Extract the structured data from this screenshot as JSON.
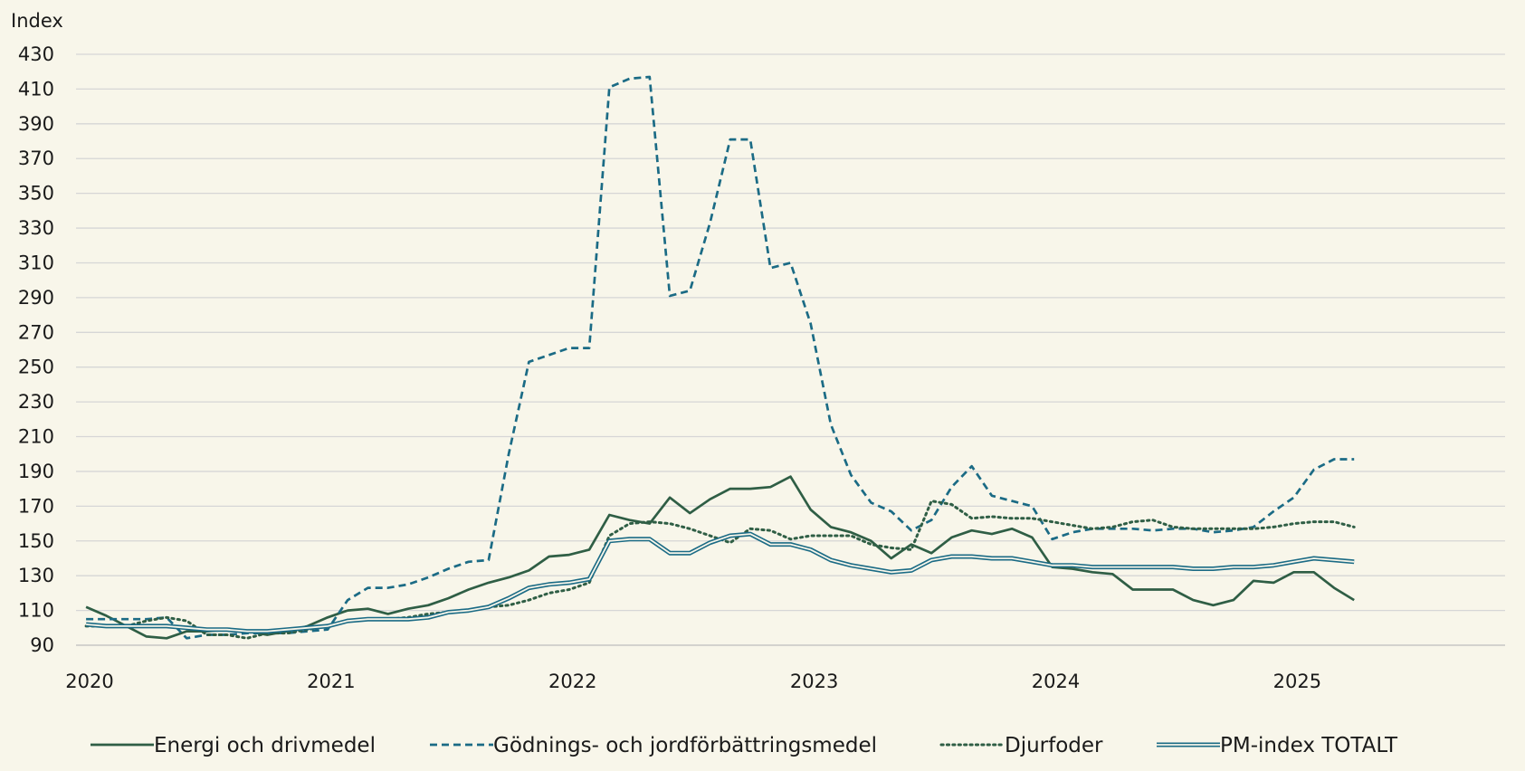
{
  "chart_data": {
    "type": "line",
    "title": "",
    "ylabel": "Index",
    "xlabel": "",
    "ylim": [
      90,
      430
    ],
    "yticks": [
      90,
      110,
      130,
      150,
      170,
      190,
      210,
      230,
      250,
      270,
      290,
      310,
      330,
      350,
      370,
      390,
      410,
      430
    ],
    "xticks": [
      "2020",
      "2021",
      "2022",
      "2023",
      "2024",
      "2025"
    ],
    "x_start": "2020-01",
    "x_end": "2025-04",
    "grid": true,
    "legend_position": "bottom",
    "series": [
      {
        "name": "Energi och drivmedel",
        "style": "solid",
        "color": "#2f5e45",
        "values": [
          112,
          107,
          101,
          95,
          94,
          98,
          98,
          99,
          98,
          96,
          98,
          101,
          106,
          110,
          111,
          108,
          111,
          113,
          117,
          122,
          126,
          129,
          133,
          141,
          142,
          145,
          165,
          162,
          160,
          175,
          166,
          174,
          180,
          180,
          181,
          187,
          168,
          158,
          155,
          150,
          140,
          148,
          143,
          152,
          156,
          154,
          157,
          152,
          135,
          134,
          132,
          131,
          122,
          122,
          122,
          116,
          113,
          116,
          127,
          126,
          132,
          132,
          123,
          116
        ]
      },
      {
        "name": "Gödnings- och jordförbättringsmedel",
        "style": "dashed",
        "color": "#1b6b85",
        "values": [
          105,
          105,
          105,
          105,
          106,
          94,
          96,
          96,
          97,
          97,
          97,
          98,
          99,
          116,
          123,
          123,
          125,
          129,
          134,
          138,
          139,
          200,
          253,
          257,
          261,
          261,
          411,
          416,
          417,
          291,
          294,
          333,
          381,
          381,
          307,
          310,
          275,
          217,
          188,
          172,
          167,
          156,
          162,
          181,
          193,
          176,
          173,
          170,
          151,
          155,
          157,
          157,
          157,
          156,
          157,
          157,
          155,
          156,
          158,
          167,
          175,
          191,
          197,
          197
        ]
      },
      {
        "name": "Djurfoder",
        "style": "dotted",
        "color": "#2f5e45",
        "values": [
          101,
          101,
          101,
          104,
          106,
          104,
          96,
          96,
          94,
          97,
          97,
          99,
          101,
          104,
          105,
          105,
          106,
          108,
          109,
          110,
          112,
          113,
          116,
          120,
          122,
          126,
          153,
          160,
          161,
          160,
          157,
          153,
          149,
          157,
          156,
          151,
          153,
          153,
          153,
          148,
          146,
          145,
          173,
          171,
          163,
          164,
          163,
          163,
          161,
          159,
          157,
          158,
          161,
          162,
          158,
          157,
          157,
          157,
          157,
          158,
          160,
          161,
          161,
          158
        ]
      },
      {
        "name": "PM-index TOTALT",
        "style": "double",
        "color": "#1b6b85",
        "values": [
          102,
          101,
          101,
          101,
          101,
          100,
          99,
          99,
          98,
          98,
          99,
          100,
          101,
          104,
          105,
          105,
          105,
          106,
          109,
          110,
          112,
          117,
          123,
          125,
          126,
          128,
          150,
          151,
          151,
          143,
          143,
          149,
          153,
          154,
          148,
          148,
          145,
          139,
          136,
          134,
          132,
          133,
          139,
          141,
          141,
          140,
          140,
          138,
          136,
          136,
          135,
          135,
          135,
          135,
          135,
          134,
          134,
          135,
          135,
          136,
          138,
          140,
          139,
          138
        ]
      }
    ]
  }
}
